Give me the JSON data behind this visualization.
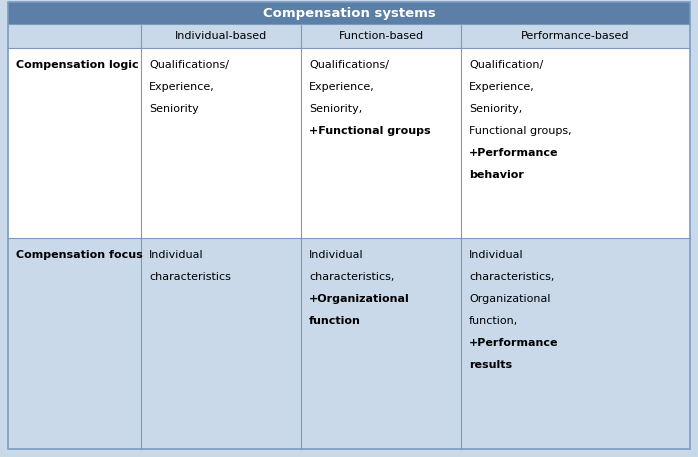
{
  "title": "Compensation systems",
  "title_bg": "#5b7fa6",
  "title_text_color": "#ffffff",
  "header_row": [
    "",
    "Individual-based",
    "Function-based",
    "Performance-based"
  ],
  "header_bg": "#c9d9ea",
  "row1_label": "Compensation logic",
  "row2_label": "Compensation focus",
  "row1_bg": "#ffffff",
  "row2_bg": "#c9d9ea",
  "table_border_color": "#7a9bbf",
  "col1_individual_logic": [
    [
      "Qualifications/",
      false
    ],
    [
      "Experience,",
      false
    ],
    [
      "Seniority",
      false
    ]
  ],
  "col2_function_logic": [
    [
      "Qualifications/",
      false
    ],
    [
      "Experience,",
      false
    ],
    [
      "Seniority,",
      false
    ],
    [
      "+Functional groups",
      true
    ]
  ],
  "col3_performance_logic": [
    [
      "Qualification/",
      false
    ],
    [
      "Experience,",
      false
    ],
    [
      "Seniority,",
      false
    ],
    [
      "Functional groups,",
      false
    ],
    [
      "+Performance",
      true
    ],
    [
      "behavior",
      true
    ]
  ],
  "col1_individual_focus": [
    [
      "Individual",
      false
    ],
    [
      "characteristics",
      false
    ]
  ],
  "col2_function_focus": [
    [
      "Individual",
      false
    ],
    [
      "characteristics,",
      false
    ],
    [
      "+Organizational",
      true
    ],
    [
      "function",
      true
    ]
  ],
  "col3_performance_focus": [
    [
      "Individual",
      false
    ],
    [
      "characteristics,",
      false
    ],
    [
      "Organizational",
      false
    ],
    [
      "function,",
      false
    ],
    [
      "+Performance",
      true
    ],
    [
      "results",
      true
    ]
  ],
  "figsize": [
    6.98,
    4.57
  ],
  "dpi": 100,
  "outer_bg": "#c9d9ea",
  "font_size": 8.0,
  "title_font_size": 9.5
}
